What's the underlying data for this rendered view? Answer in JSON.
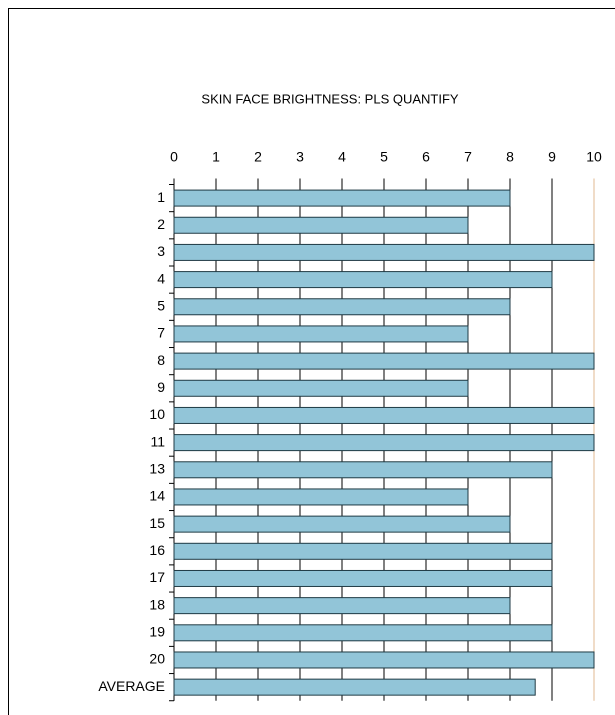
{
  "chart_data": {
    "type": "bar",
    "orientation": "horizontal",
    "title": "SKIN FACE BRIGHTNESS: PLS QUANTIFY",
    "categories": [
      "1",
      "2",
      "3",
      "4",
      "5",
      "7",
      "8",
      "9",
      "10",
      "11",
      "13",
      "14",
      "15",
      "16",
      "17",
      "18",
      "19",
      "20",
      "AVERAGE"
    ],
    "values": [
      8,
      7,
      10,
      9,
      8,
      7,
      10,
      7,
      10,
      10,
      9,
      7,
      8,
      9,
      9,
      8,
      9,
      10,
      8.6
    ],
    "color": "#92c5d8",
    "xlim": [
      0,
      10
    ],
    "xticks": [
      0,
      1,
      2,
      3,
      4,
      5,
      6,
      7,
      8,
      9,
      10
    ],
    "grid": true
  }
}
